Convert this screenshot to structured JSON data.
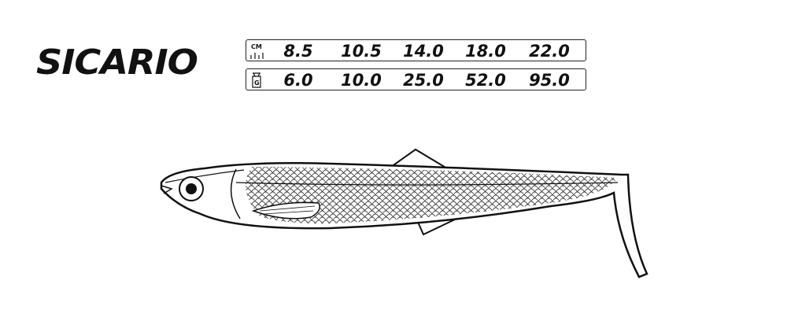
{
  "brand": {
    "name": "SICARIO"
  },
  "specs": {
    "length": {
      "unit": "CM",
      "icon": "ruler-icon",
      "values": [
        "8.5",
        "10.5",
        "14.0",
        "18.0",
        "22.0"
      ]
    },
    "weight": {
      "unit": "G",
      "icon": "weight-icon",
      "values": [
        "6.0",
        "10.0",
        "25.0",
        "52.0",
        "95.0"
      ]
    }
  }
}
